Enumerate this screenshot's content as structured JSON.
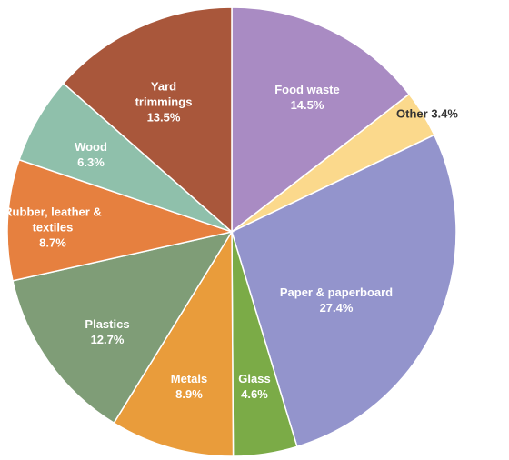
{
  "chart_data": {
    "type": "pie",
    "categories": [
      "Food waste",
      "Other",
      "Paper & paperboard",
      "Glass",
      "Metals",
      "Plastics",
      "Rubber, leather & textiles",
      "Wood",
      "Yard trimmings"
    ],
    "values": [
      14.5,
      3.4,
      27.4,
      4.6,
      8.9,
      12.7,
      8.7,
      6.3,
      13.5
    ],
    "value_labels": [
      "14.5%",
      "3.4%",
      "27.4%",
      "4.6%",
      "8.9%",
      "12.7%",
      "8.7%",
      "6.3%",
      "13.5%"
    ],
    "colors": [
      "#a98bc3",
      "#fbd98c",
      "#9394cc",
      "#7bab47",
      "#e99c3b",
      "#7f9d77",
      "#e6803f",
      "#8fc0ab",
      "#a9573b"
    ]
  }
}
